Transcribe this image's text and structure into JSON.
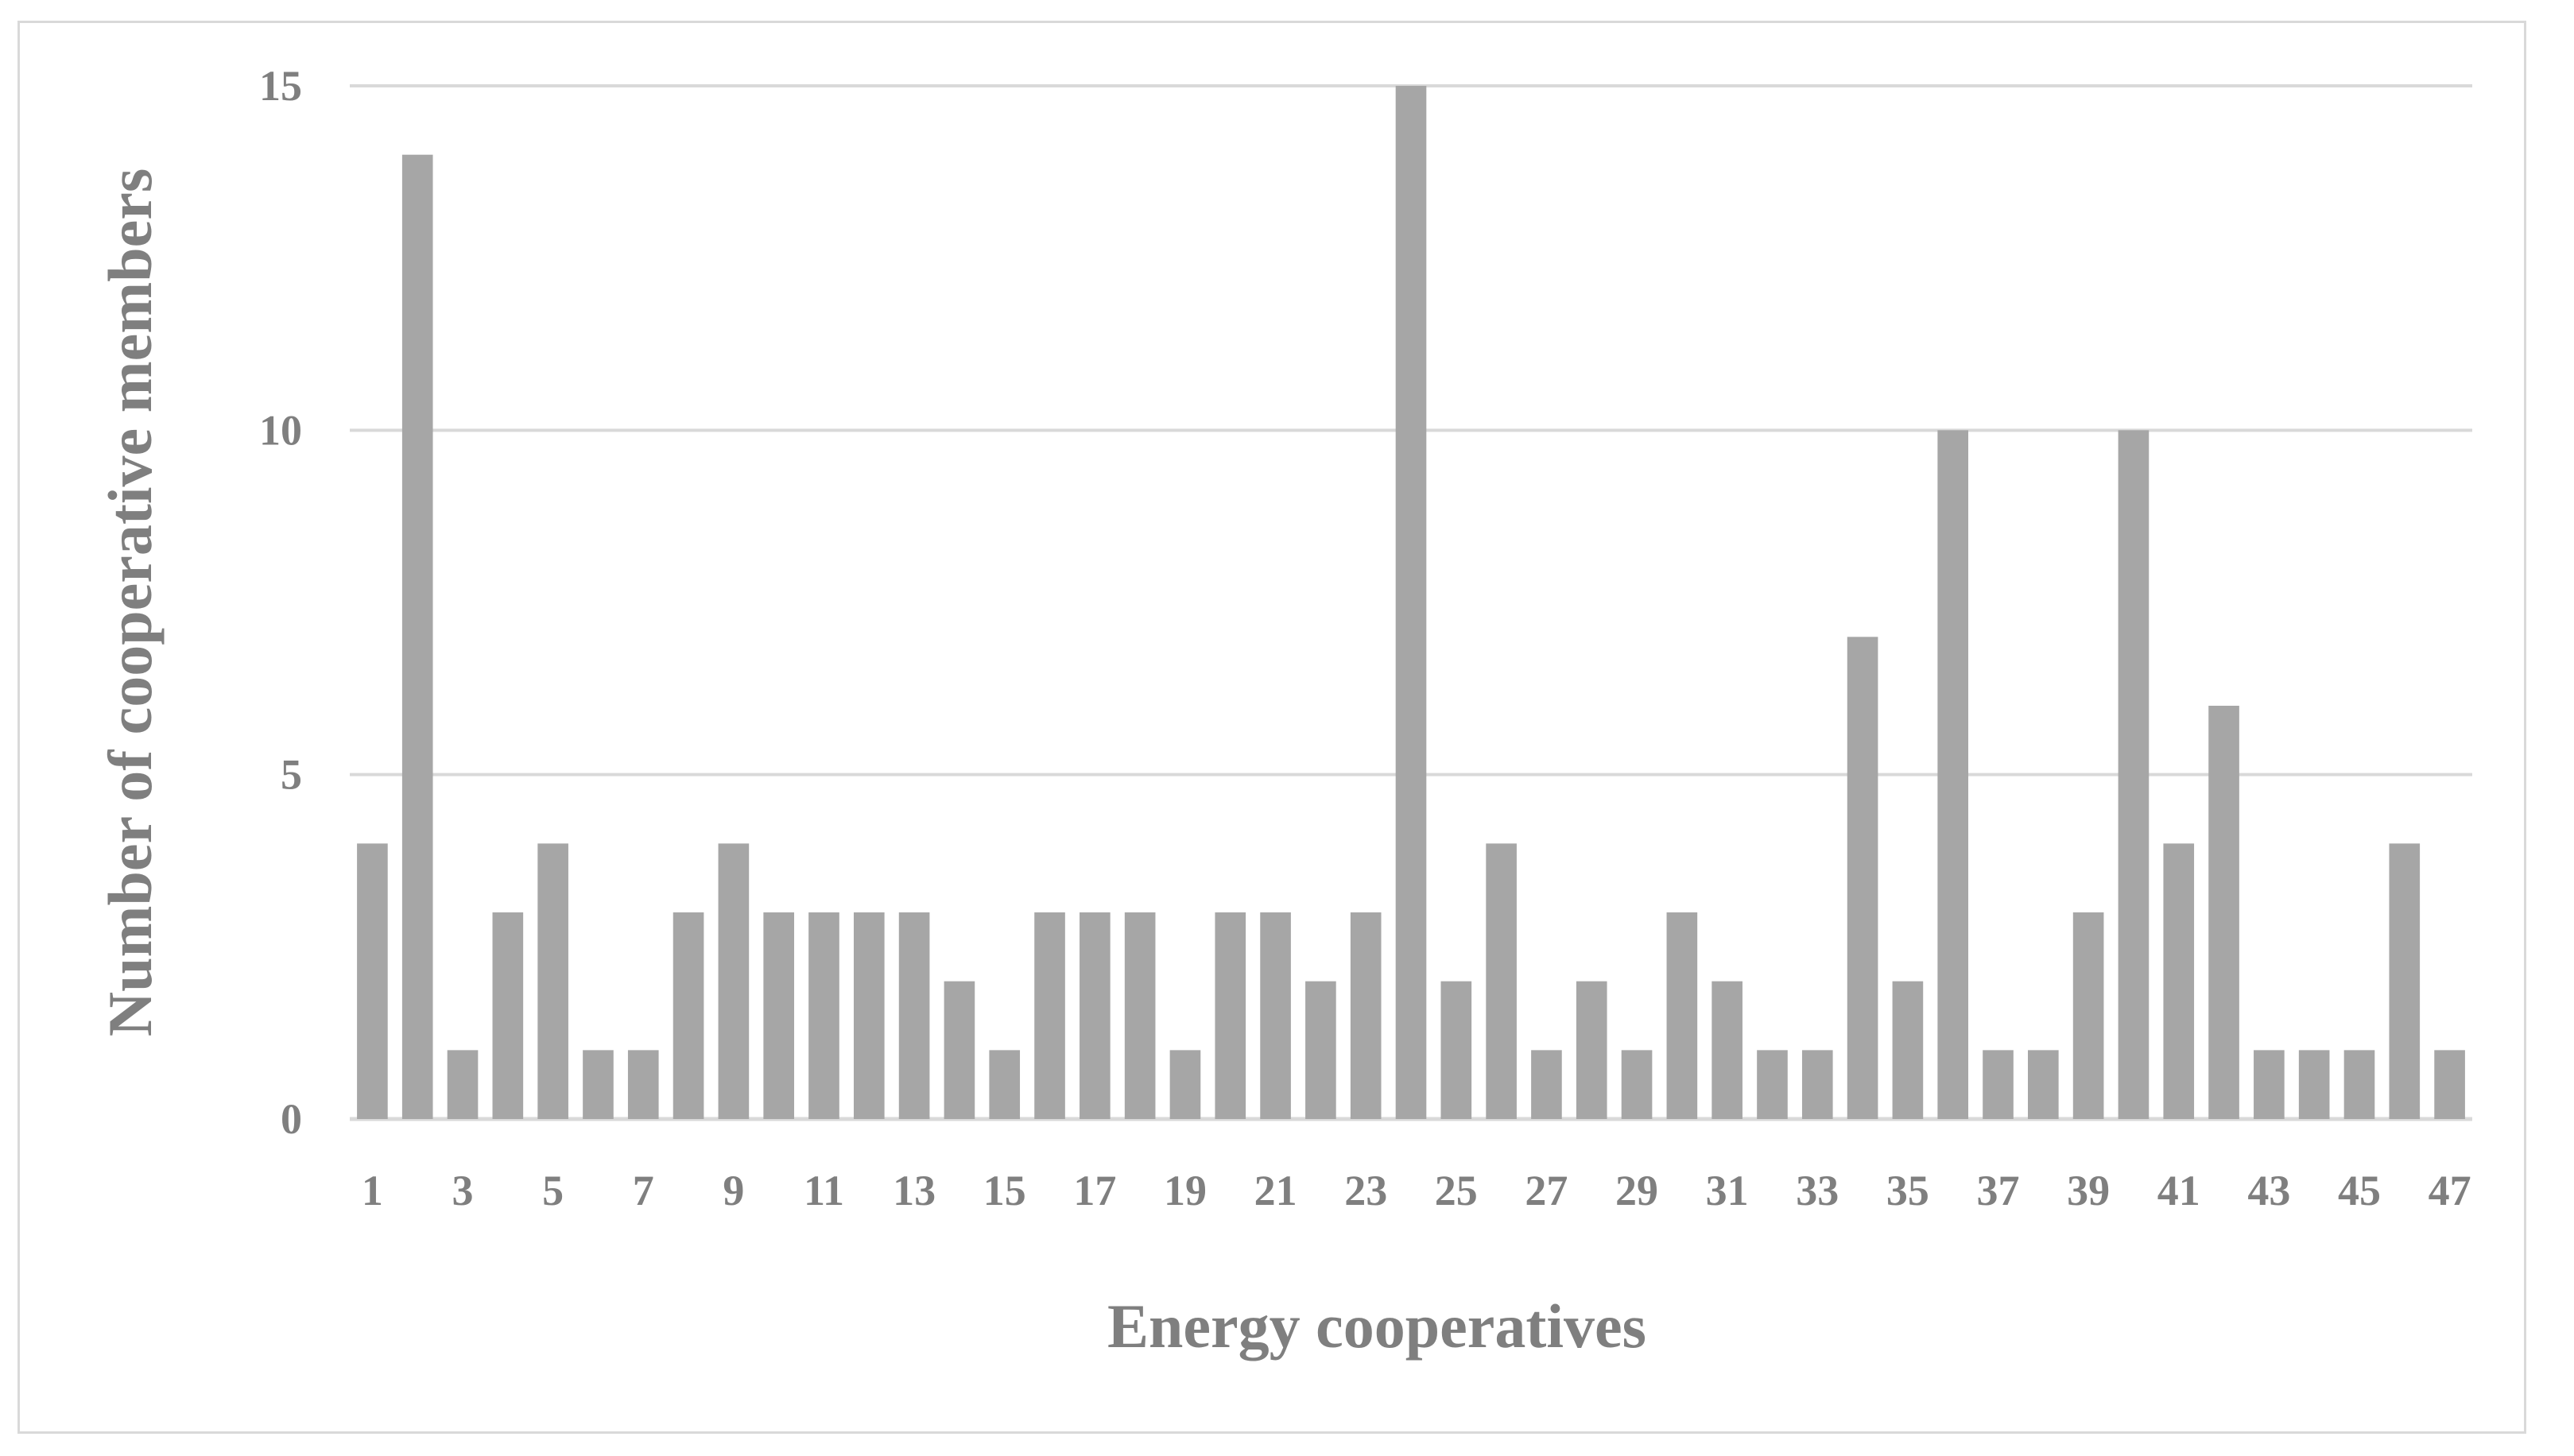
{
  "chart_data": {
    "type": "bar",
    "title": "",
    "xlabel": "Energy cooperatives",
    "ylabel": "Number of cooperative members",
    "ylim": [
      0,
      15
    ],
    "yticks": [
      0,
      5,
      10,
      15
    ],
    "grid": true,
    "categories": [
      "1",
      "2",
      "3",
      "4",
      "5",
      "6",
      "7",
      "8",
      "9",
      "10",
      "11",
      "12",
      "13",
      "14",
      "15",
      "16",
      "17",
      "18",
      "19",
      "20",
      "21",
      "22",
      "23",
      "24",
      "25",
      "26",
      "27",
      "28",
      "29",
      "30",
      "31",
      "32",
      "33",
      "34",
      "35",
      "36",
      "37",
      "38",
      "39",
      "40",
      "41",
      "42",
      "43",
      "44",
      "45",
      "46",
      "47"
    ],
    "values": [
      4,
      14,
      1,
      3,
      4,
      1,
      1,
      3,
      4,
      3,
      3,
      3,
      3,
      2,
      1,
      3,
      3,
      3,
      1,
      3,
      3,
      2,
      3,
      15,
      2,
      4,
      1,
      2,
      1,
      3,
      2,
      1,
      1,
      7,
      2,
      10,
      1,
      1,
      3,
      10,
      4,
      6,
      1,
      1,
      1,
      4,
      1
    ],
    "x_tick_labels_shown": [
      "1",
      "3",
      "5",
      "7",
      "9",
      "11",
      "13",
      "15",
      "17",
      "19",
      "21",
      "23",
      "25",
      "27",
      "29",
      "31",
      "33",
      "35",
      "37",
      "39",
      "41",
      "43",
      "45",
      "47"
    ],
    "colors": {
      "bar": "#a6a6a6",
      "grid": "#d9d9d9",
      "text": "#7f7f7f",
      "frame": "#d9d9d9"
    }
  }
}
